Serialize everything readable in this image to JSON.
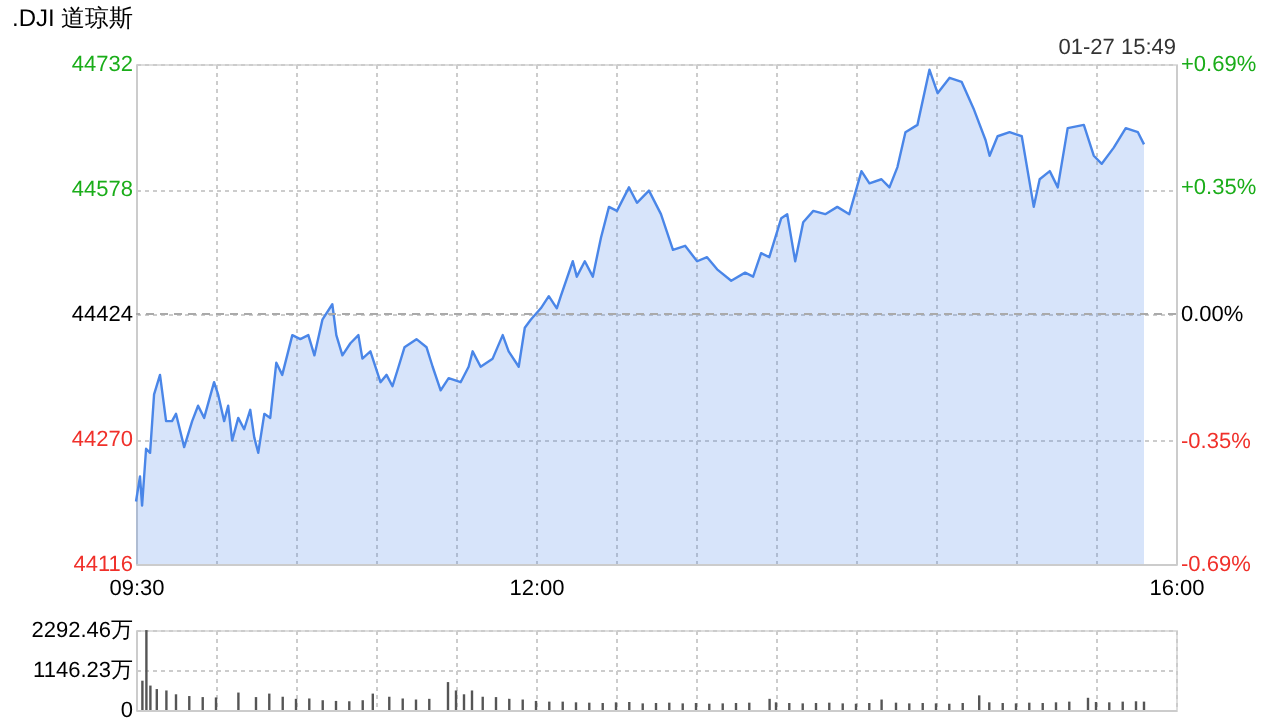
{
  "chart_data": [
    {
      "type": "area",
      "title": ".DJI 道琼斯",
      "annotations": [
        "01-27 15:49"
      ],
      "series": [
        {
          "color": "#4a86e8",
          "x": [
            9.5,
            9.525,
            9.538,
            9.563,
            9.588,
            9.613,
            9.65,
            9.688,
            9.725,
            9.75,
            9.801,
            9.851,
            9.888,
            9.926,
            9.988,
            10.013,
            10.051,
            10.076,
            10.101,
            10.139,
            10.176,
            10.214,
            10.239,
            10.264,
            10.302,
            10.339,
            10.377,
            10.414,
            10.477,
            10.527,
            10.577,
            10.615,
            10.665,
            10.727,
            10.752,
            10.79,
            10.84,
            10.89,
            10.915,
            10.965,
            11.028,
            11.066,
            11.103,
            11.141,
            11.178,
            11.253,
            11.316,
            11.354,
            11.404,
            11.454,
            11.529,
            11.579,
            11.604,
            11.654,
            11.729,
            11.792,
            11.829,
            11.892,
            11.93,
            11.967,
            12.03,
            12.08,
            12.13,
            12.155,
            12.23,
            12.255,
            12.305,
            12.355,
            12.406,
            12.456,
            12.506,
            12.581,
            12.631,
            12.706,
            12.781,
            12.856,
            12.932,
            13.007,
            13.069,
            13.132,
            13.22,
            13.307,
            13.357,
            13.407,
            13.458,
            13.533,
            13.57,
            13.62,
            13.67,
            13.733,
            13.808,
            13.883,
            13.958,
            14.034,
            14.084,
            14.159,
            14.209,
            14.259,
            14.309,
            14.384,
            14.459,
            14.51,
            14.585,
            14.66,
            14.735,
            14.81,
            14.835,
            14.885,
            14.96,
            15.036,
            15.111,
            15.148,
            15.211,
            15.261,
            15.323,
            15.424,
            15.486,
            15.536,
            15.611,
            15.686,
            15.762,
            15.8
          ],
          "values": [
            44193,
            44224,
            44188,
            44258,
            44253,
            44325,
            44349,
            44292,
            44292,
            44301,
            44260,
            44292,
            44311,
            44296,
            44340,
            44325,
            44292,
            44311,
            44268,
            44296,
            44282,
            44306,
            44272,
            44253,
            44301,
            44296,
            44364,
            44349,
            44398,
            44393,
            44398,
            44373,
            44417,
            44436,
            44398,
            44373,
            44388,
            44398,
            44369,
            44378,
            44340,
            44349,
            44335,
            44359,
            44383,
            44393,
            44383,
            44359,
            44330,
            44345,
            44340,
            44359,
            44378,
            44359,
            44369,
            44398,
            44378,
            44359,
            44407,
            44417,
            44431,
            44446,
            44431,
            44446,
            44489,
            44470,
            44489,
            44470,
            44518,
            44556,
            44551,
            44580,
            44561,
            44576,
            44547,
            44503,
            44508,
            44489,
            44494,
            44479,
            44465,
            44475,
            44470,
            44499,
            44494,
            44542,
            44547,
            44489,
            44537,
            44551,
            44547,
            44556,
            44547,
            44600,
            44585,
            44590,
            44580,
            44605,
            44648,
            44657,
            44725,
            44696,
            44715,
            44710,
            44677,
            44638,
            44619,
            44643,
            44648,
            44643,
            44556,
            44590,
            44600,
            44580,
            44653,
            44657,
            44619,
            44609,
            44629,
            44653,
            44648,
            44633
          ]
        }
      ],
      "xlim": [
        9.5,
        16
      ],
      "xticks": [
        {
          "value": 9.5,
          "label": "09:30"
        },
        {
          "value": 10,
          "label": null
        },
        {
          "value": 10.5,
          "label": null
        },
        {
          "value": 11,
          "label": null
        },
        {
          "value": 11.5,
          "label": null
        },
        {
          "value": 12,
          "label": "12:00"
        },
        {
          "value": 12.5,
          "label": null
        },
        {
          "value": 13,
          "label": null
        },
        {
          "value": 13.5,
          "label": null
        },
        {
          "value": 14,
          "label": null
        },
        {
          "value": 14.5,
          "label": null
        },
        {
          "value": 15,
          "label": null
        },
        {
          "value": 15.5,
          "label": null
        },
        {
          "value": 16,
          "label": "16:00"
        }
      ],
      "ylim": [
        44116,
        44732
      ],
      "yticks": [
        44116,
        44270,
        44424,
        44578,
        44732
      ],
      "y2lim": [
        -0.69,
        0.69
      ],
      "y2ticks": [
        {
          "value": -0.69,
          "label": "-0.69%"
        },
        {
          "value": -0.35,
          "label": "-0.35%"
        },
        {
          "value": 0,
          "label": "0.00%"
        },
        {
          "value": 0.35,
          "label": "+0.35%"
        },
        {
          "value": 0.69,
          "label": "+0.69%"
        }
      ],
      "ref_lines": [
        {
          "axis": "y",
          "value": 44424,
          "line_style": "dashed",
          "color": "#aaaaaa"
        }
      ],
      "grid": true
    },
    {
      "type": "bar",
      "series": [
        {
          "color": "#555555",
          "x": [
            9.54,
            9.565,
            9.59,
            9.63,
            9.69,
            9.75,
            9.833,
            9.917,
            10.0,
            10.14,
            10.25,
            10.333,
            10.417,
            10.5,
            10.583,
            10.667,
            10.75,
            10.833,
            10.917,
            10.98,
            11.083,
            11.167,
            11.25,
            11.333,
            11.45,
            11.5,
            11.55,
            11.6,
            11.667,
            11.75,
            11.833,
            11.917,
            12.0,
            12.083,
            12.167,
            12.25,
            12.333,
            12.417,
            12.5,
            12.583,
            12.667,
            12.75,
            12.833,
            12.917,
            13.0,
            13.083,
            13.167,
            13.25,
            13.333,
            13.46,
            13.5,
            13.583,
            13.667,
            13.75,
            13.833,
            13.917,
            14.0,
            14.083,
            14.16,
            14.25,
            14.333,
            14.417,
            14.5,
            14.583,
            14.667,
            14.77,
            14.833,
            14.917,
            15.0,
            15.083,
            15.167,
            15.25,
            15.333,
            15.45,
            15.5,
            15.583,
            15.667,
            15.75,
            15.8
          ],
          "values": [
            840,
            2290,
            700,
            600,
            560,
            450,
            400,
            370,
            360,
            500,
            370,
            470,
            380,
            320,
            330,
            280,
            260,
            250,
            280,
            470,
            380,
            330,
            300,
            320,
            800,
            560,
            450,
            560,
            380,
            370,
            320,
            300,
            260,
            240,
            240,
            220,
            210,
            200,
            220,
            230,
            190,
            200,
            210,
            190,
            200,
            180,
            190,
            200,
            210,
            320,
            220,
            200,
            190,
            200,
            210,
            190,
            180,
            200,
            300,
            210,
            190,
            200,
            190,
            180,
            200,
            420,
            220,
            200,
            190,
            210,
            200,
            220,
            240,
            350,
            230,
            220,
            240,
            250,
            240
          ]
        }
      ],
      "xlim": [
        9.5,
        16
      ],
      "xticks": [
        {
          "value": 9.5,
          "label": null
        },
        {
          "value": 10,
          "label": null
        },
        {
          "value": 10.5,
          "label": null
        },
        {
          "value": 11,
          "label": null
        },
        {
          "value": 11.5,
          "label": null
        },
        {
          "value": 12,
          "label": null
        },
        {
          "value": 12.5,
          "label": null
        },
        {
          "value": 13,
          "label": null
        },
        {
          "value": 13.5,
          "label": null
        },
        {
          "value": 14,
          "label": null
        },
        {
          "value": 14.5,
          "label": null
        },
        {
          "value": 15,
          "label": null
        },
        {
          "value": 15.5,
          "label": null
        },
        {
          "value": 16,
          "label": null
        }
      ],
      "ylim": [
        0,
        2292.46
      ],
      "yticks": [
        0,
        {
          "value": 1146.23,
          "label": "1146.23万"
        },
        {
          "value": 2292.46,
          "label": "2292.46万"
        }
      ],
      "tick_labels": "y",
      "grid": true
    }
  ]
}
